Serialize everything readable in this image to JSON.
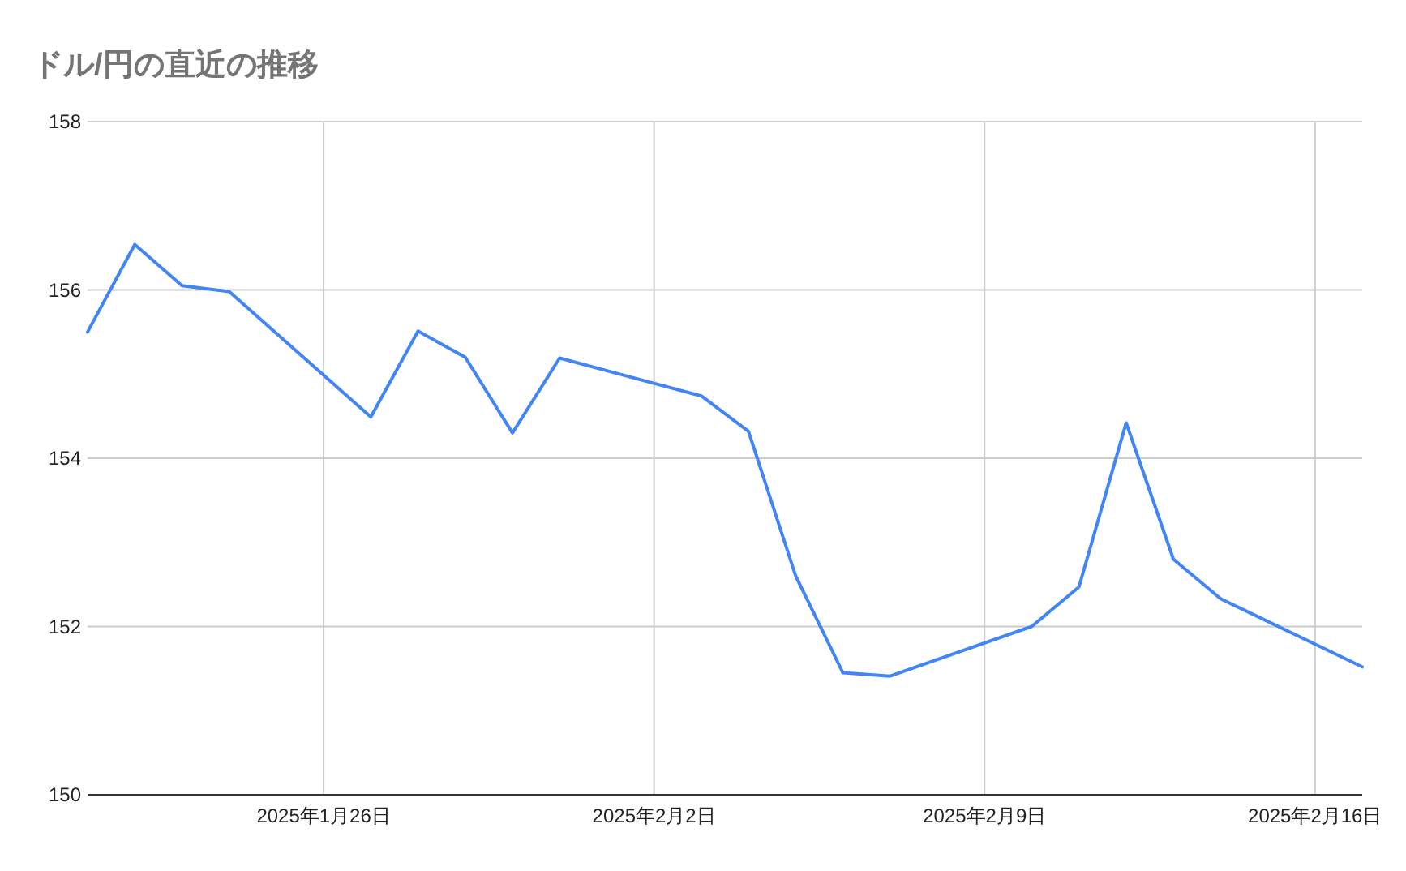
{
  "chart_data": {
    "type": "line",
    "title": "ドル/円の直近の推移",
    "x": [
      "2025-01-21",
      "2025-01-22",
      "2025-01-23",
      "2025-01-24",
      "2025-01-27",
      "2025-01-28",
      "2025-01-29",
      "2025-01-30",
      "2025-01-31",
      "2025-02-03",
      "2025-02-04",
      "2025-02-05",
      "2025-02-06",
      "2025-02-07",
      "2025-02-10",
      "2025-02-11",
      "2025-02-12",
      "2025-02-13",
      "2025-02-14",
      "2025-02-17"
    ],
    "series": [
      {
        "color": "#4285f4",
        "values": [
          155.5,
          156.54,
          156.05,
          155.98,
          154.49,
          155.51,
          155.2,
          154.3,
          155.19,
          154.74,
          154.32,
          152.6,
          151.45,
          151.41,
          152.0,
          152.47,
          154.42,
          152.8,
          152.33,
          151.52
        ]
      }
    ],
    "xlim": [
      "2025-01-21",
      "2025-02-17"
    ],
    "xticks": [
      {
        "value": "2025-01-26",
        "label": "2025年1月26日"
      },
      {
        "value": "2025-02-02",
        "label": "2025年2月2日"
      },
      {
        "value": "2025-02-09",
        "label": "2025年2月9日"
      },
      {
        "value": "2025-02-16",
        "label": "2025年2月16日"
      }
    ],
    "ylim": [
      150,
      158
    ],
    "yticks": [
      150,
      152,
      154,
      156,
      158
    ],
    "grid": true,
    "marker": "none",
    "line_style": "solid"
  }
}
